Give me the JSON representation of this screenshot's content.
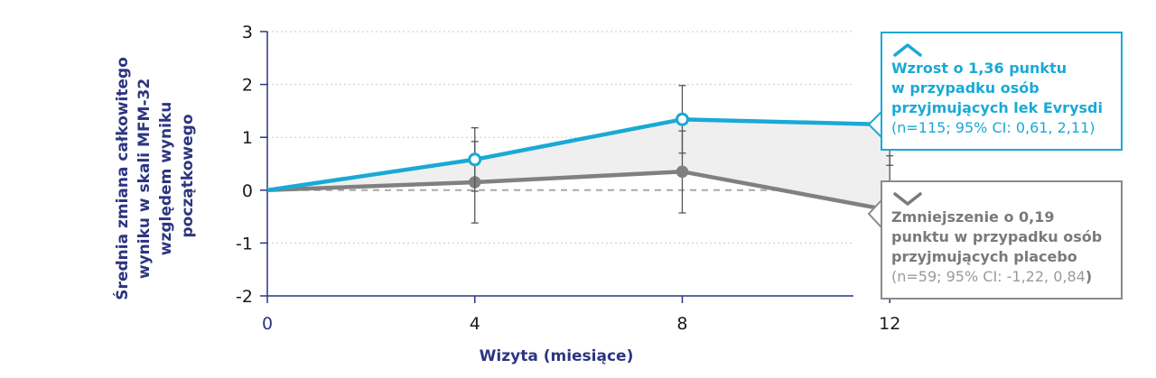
{
  "chart_data": {
    "type": "line",
    "x": [
      0,
      4,
      8,
      12
    ],
    "xlabel": "Wizyta (miesiące)",
    "ylabel_lines": [
      "Średnia zmiana całkowitego",
      "wyniku w skali MFM-32",
      "względem wyniku",
      "początkowego"
    ],
    "xticks": [
      "0",
      "4",
      "8",
      "12"
    ],
    "yticks": [
      "3",
      "2",
      "1",
      "0",
      "-1",
      "-2"
    ],
    "ylim": [
      -2,
      3
    ],
    "xlim": [
      0,
      11.3
    ],
    "grid": true,
    "series": [
      {
        "values": [
          0,
          0.58,
          1.34,
          1.24
        ],
        "err_low": [
          null,
          -0.02,
          0.7,
          0.47
        ],
        "err_high": [
          null,
          1.18,
          1.98,
          2.1
        ],
        "color": "#1aa9d6",
        "marker": "hollow-circle"
      },
      {
        "values": [
          0,
          0.15,
          0.35,
          -0.38
        ],
        "err_low": [
          null,
          -0.62,
          -0.43,
          -1.33
        ],
        "err_high": [
          null,
          0.92,
          1.12,
          0.65
        ],
        "color": "#808080",
        "marker": "filled-circle"
      }
    ],
    "reference_line": 0
  },
  "callouts": {
    "evrysdi": {
      "icon": "chevron-up-icon",
      "headline": [
        "Wzrost o 1,36 punktu",
        "w przypadku osób",
        "przyjmujących lek Evrysdi"
      ],
      "ci": "(n=115; 95% CI: 0,61, 2,11)",
      "color": "#1aa9d6"
    },
    "placebo": {
      "icon": "chevron-down-icon",
      "headline": [
        "Zmniejszenie o 0,19",
        "punktu w przypadku osób",
        "przyjmujących placebo"
      ],
      "ci": "(n=59; 95% CI: -1,22, 0,84",
      "ci_close": ")",
      "color": "#8a8a8a"
    }
  }
}
